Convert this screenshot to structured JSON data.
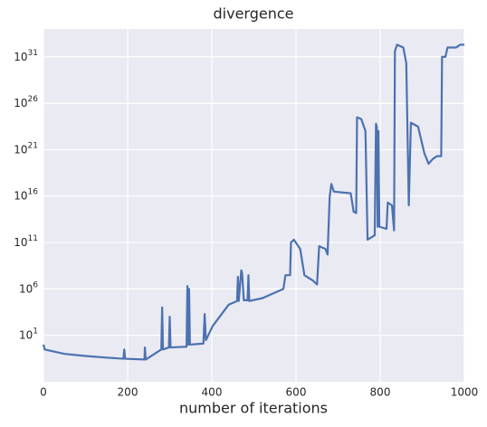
{
  "chart_data": {
    "type": "line",
    "title": "divergence",
    "x_label": "number of iterations",
    "log_y": true,
    "grid": true,
    "background": "#eaeaf2",
    "xlim": [
      0,
      1000
    ],
    "ylim": [
      0.0001,
      1e+34
    ],
    "xticks": [
      0,
      200,
      400,
      600,
      800,
      1000
    ],
    "yticks": [
      {
        "value": 10,
        "label": "10^1"
      },
      {
        "value": 1000000.0,
        "label": "10^6"
      },
      {
        "value": 100000000000.0,
        "label": "10^11"
      },
      {
        "value": 1e+16,
        "label": "10^16"
      },
      {
        "value": 1e+21,
        "label": "10^21"
      },
      {
        "value": 1e+26,
        "label": "10^26"
      },
      {
        "value": 1e+31,
        "label": "10^31"
      }
    ],
    "x": [
      0,
      3,
      50,
      100,
      150,
      190,
      192,
      194,
      240,
      241,
      243,
      280,
      282,
      284,
      298,
      300,
      302,
      340,
      342,
      344,
      346,
      348,
      380,
      383,
      386,
      402,
      440,
      460,
      462,
      464,
      470,
      472,
      476,
      485,
      487,
      489,
      520,
      570,
      575,
      586,
      588,
      595,
      610,
      620,
      640,
      650,
      655,
      670,
      675,
      680,
      684,
      690,
      730,
      737,
      743,
      745,
      755,
      765,
      770,
      787,
      790,
      792,
      794,
      796,
      798,
      815,
      818,
      828,
      833,
      835,
      840,
      855,
      862,
      868,
      873,
      890,
      905,
      915,
      925,
      935,
      945,
      947,
      955,
      960,
      980,
      990,
      1000
    ],
    "series": [
      {
        "color": "#4c72b0",
        "values": [
          1,
          0.3,
          0.1,
          0.06,
          0.04,
          0.03,
          0.3,
          0.03,
          0.025,
          0.5,
          0.025,
          0.3,
          10000.0,
          0.3,
          0.5,
          1000.0,
          0.5,
          0.6,
          2000000.0,
          1,
          1000000.0,
          1,
          1.3,
          2000.0,
          3,
          100,
          20000.0,
          50000.0,
          20000000.0,
          50000.0,
          100000000.0,
          50000000.0,
          60000.0,
          60000.0,
          30000000.0,
          50000.0,
          100000.0,
          1000000.0,
          30000000.0,
          30000000.0,
          100000000000.0,
          200000000000.0,
          20000000000.0,
          30000000.0,
          8000000.0,
          3000000.0,
          40000000000.0,
          20000000000.0,
          5000000000.0,
          8000000000000000.0,
          2e+17,
          3e+16,
          2e+16,
          200000000000000.0,
          150000000000000.0,
          3e+24,
          2e+24,
          1e+23,
          200000000000.0,
          600000000000.0,
          6e+23,
          3e+23,
          5000000000000.0,
          1e+23,
          5000000000000.0,
          3000000000000.0,
          2000000000000000.0,
          1000000000000000.0,
          2000000000000.0,
          4e+31,
          2e+32,
          1e+32,
          2e+30,
          1000000000000000.0,
          8e+23,
          3e+23,
          4e+20,
          3e+19,
          1e+20,
          2e+20,
          2e+20,
          1e+31,
          1e+31,
          1e+32,
          1e+32,
          2e+32,
          2e+32
        ]
      }
    ]
  }
}
